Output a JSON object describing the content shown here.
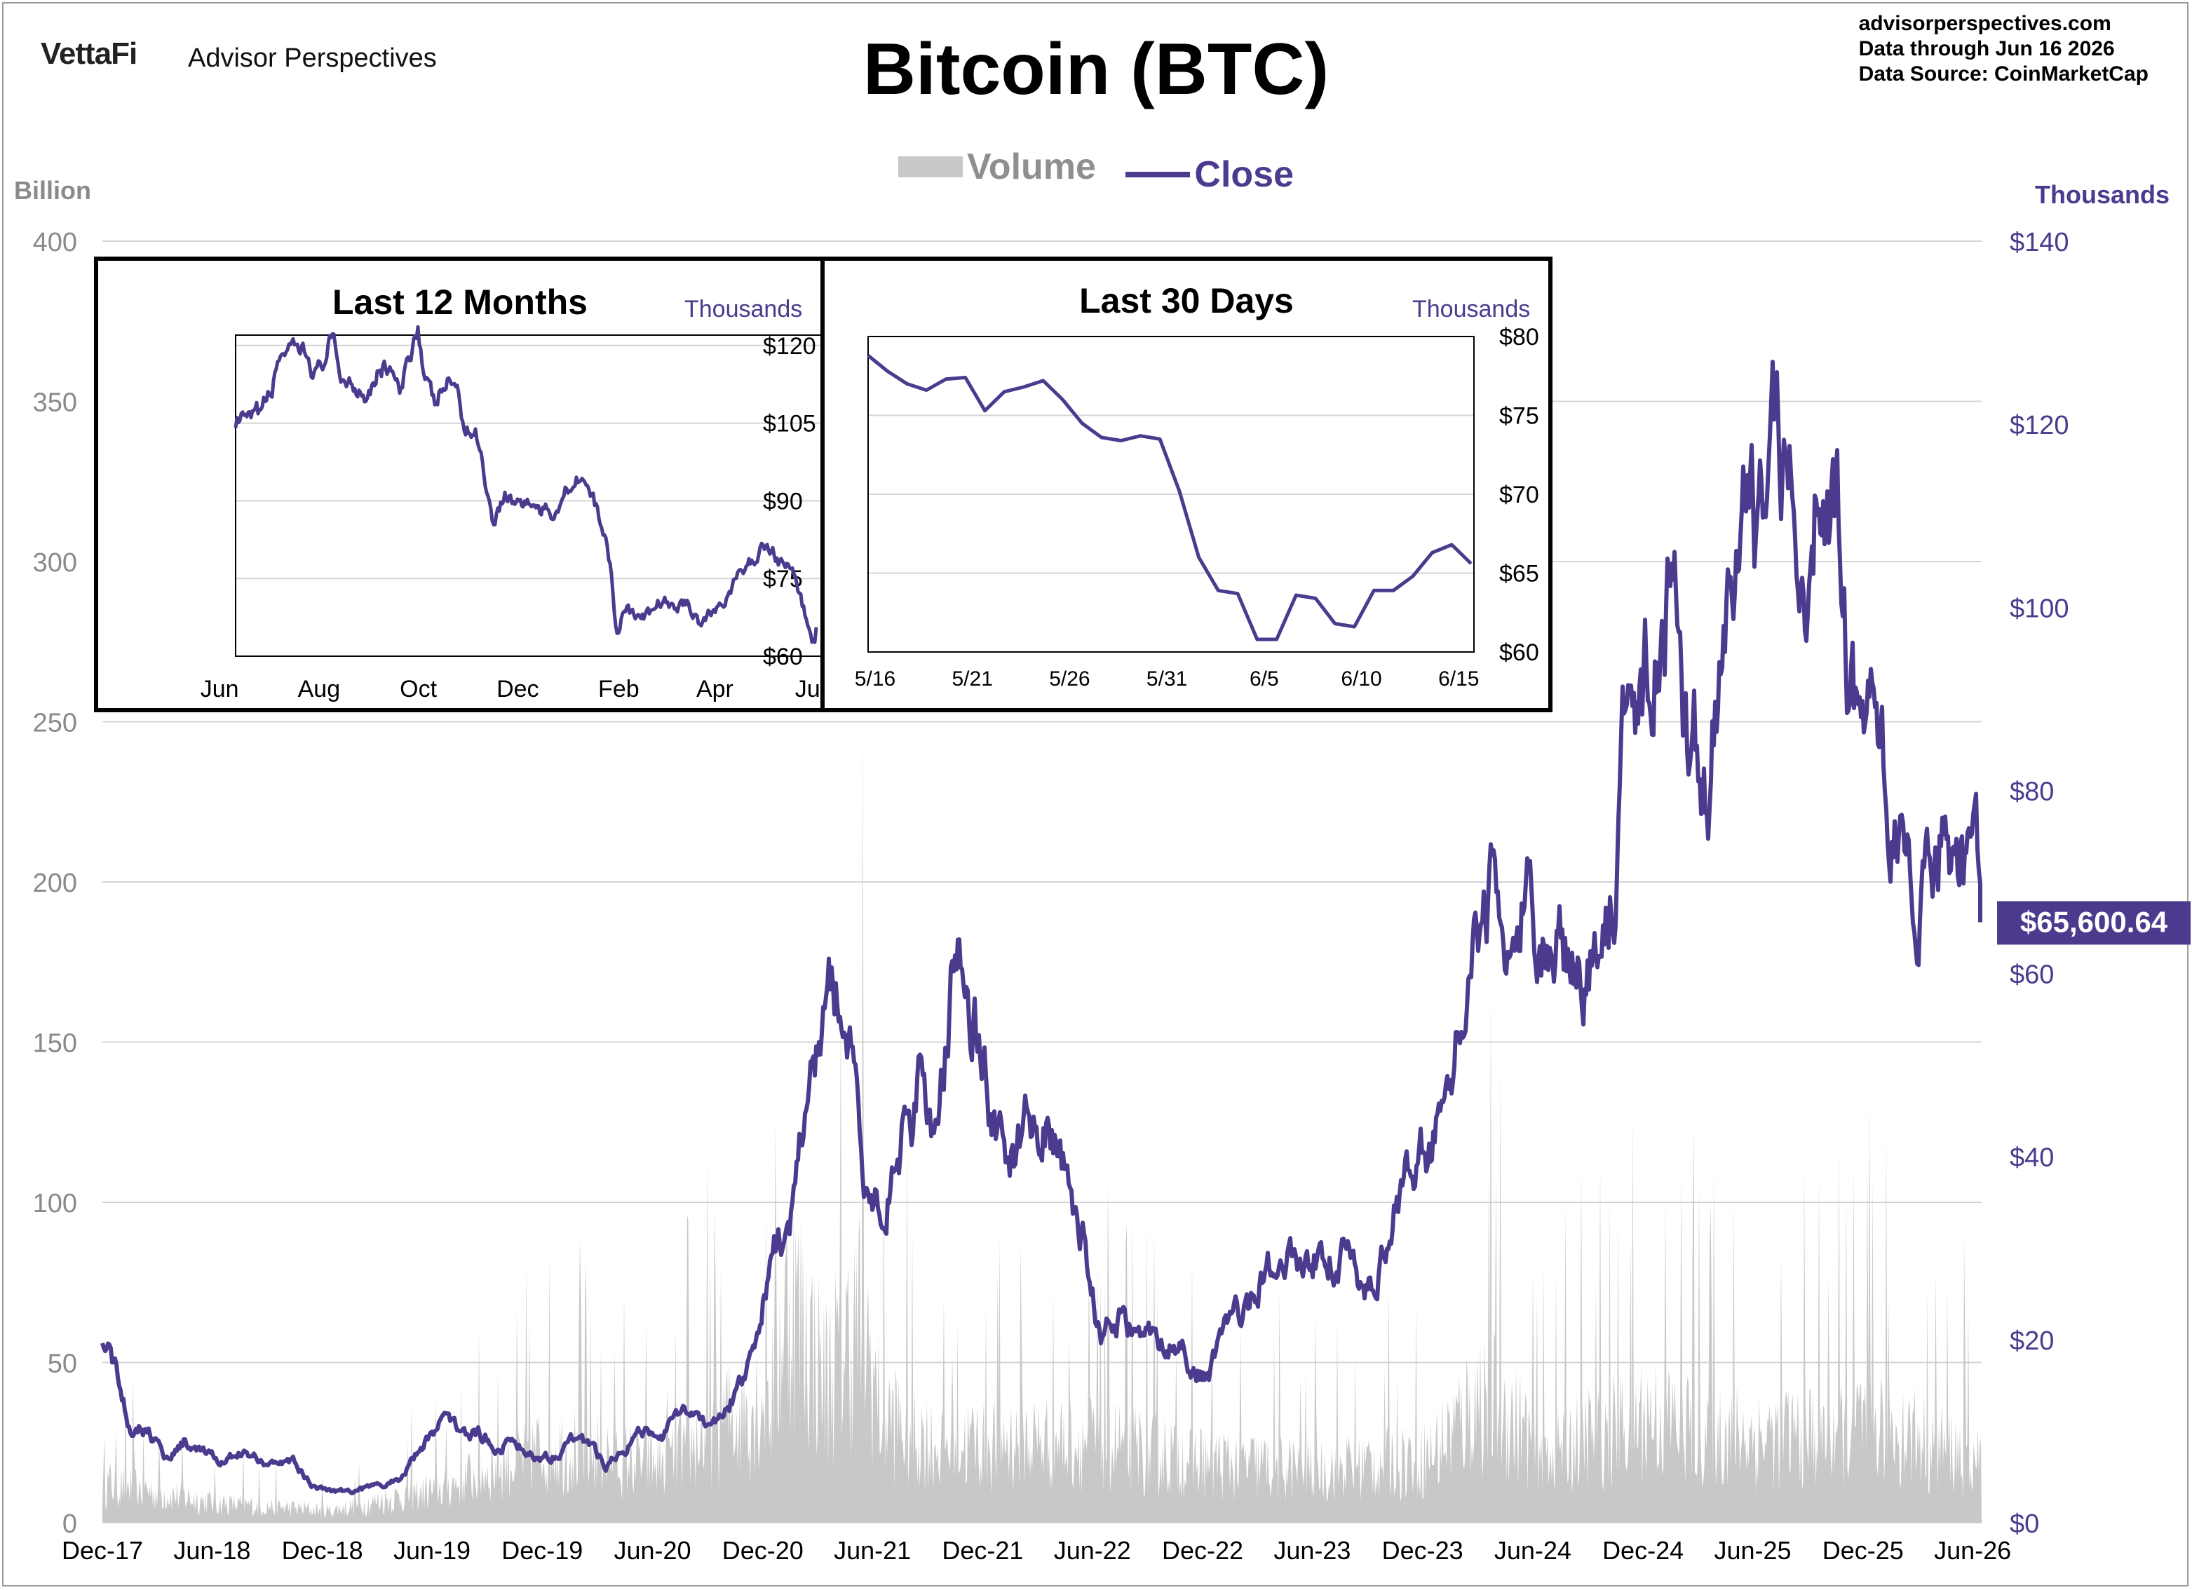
{
  "header": {
    "logo_brand": "VettaFi",
    "logo_product": "Advisor Perspectives",
    "title": "Bitcoin (BTC)",
    "site": "advisorperspectives.com",
    "data_through": "Data through  Jun 16 2026",
    "data_source": "Data Source:  CoinMarketCap"
  },
  "legend": {
    "volume_label": "Volume",
    "close_label": "Close"
  },
  "colors": {
    "close_line": "#4b3a8e",
    "volume_fill": "#c8c8c8",
    "grid": "#d4d4d4",
    "left_axis_text": "#8a8a8a"
  },
  "last_value_label": "$65,600.64",
  "chart_data": [
    {
      "type": "area+line",
      "title": "Bitcoin (BTC)",
      "left_axis": {
        "label": "Billion",
        "ticks": [
          "0",
          "50",
          "100",
          "150",
          "200",
          "250",
          "300",
          "350",
          "400"
        ],
        "range": [
          0,
          400
        ]
      },
      "right_axis": {
        "label": "Thousands",
        "ticks": [
          "$0",
          "$20",
          "$40",
          "$60",
          "$80",
          "$100",
          "$120",
          "$140"
        ],
        "range": [
          0,
          140
        ]
      },
      "x_ticks": [
        "Dec-17",
        "Jun-18",
        "Dec-18",
        "Jun-19",
        "Dec-19",
        "Jun-20",
        "Dec-20",
        "Jun-21",
        "Dec-21",
        "Jun-22",
        "Dec-22",
        "Jun-23",
        "Dec-23",
        "Jun-24",
        "Dec-24",
        "Jun-25",
        "Dec-25",
        "Jun-26"
      ],
      "grid": true,
      "series": [
        {
          "name": "Close",
          "axis": "right",
          "unit": "thousands USD",
          "x": [
            "2017-12",
            "2018-01",
            "2018-02",
            "2018-03",
            "2018-04",
            "2018-05",
            "2018-06",
            "2018-07",
            "2018-08",
            "2018-09",
            "2018-10",
            "2018-11",
            "2018-12",
            "2019-01",
            "2019-02",
            "2019-03",
            "2019-04",
            "2019-05",
            "2019-06",
            "2019-07",
            "2019-08",
            "2019-09",
            "2019-10",
            "2019-11",
            "2019-12",
            "2020-01",
            "2020-02",
            "2020-03",
            "2020-04",
            "2020-05",
            "2020-06",
            "2020-07",
            "2020-08",
            "2020-09",
            "2020-10",
            "2020-11",
            "2020-12",
            "2021-01",
            "2021-02",
            "2021-03",
            "2021-04",
            "2021-05",
            "2021-06",
            "2021-07",
            "2021-08",
            "2021-09",
            "2021-10",
            "2021-11",
            "2021-12",
            "2022-01",
            "2022-02",
            "2022-03",
            "2022-04",
            "2022-05",
            "2022-06",
            "2022-07",
            "2022-08",
            "2022-09",
            "2022-10",
            "2022-11",
            "2022-12",
            "2023-01",
            "2023-02",
            "2023-03",
            "2023-04",
            "2023-05",
            "2023-06",
            "2023-07",
            "2023-08",
            "2023-09",
            "2023-10",
            "2023-11",
            "2023-12",
            "2024-01",
            "2024-02",
            "2024-03",
            "2024-04",
            "2024-05",
            "2024-06",
            "2024-07",
            "2024-08",
            "2024-09",
            "2024-10",
            "2024-11",
            "2024-12",
            "2025-01",
            "2025-02",
            "2025-03",
            "2025-04",
            "2025-05",
            "2025-06",
            "2025-07",
            "2025-08",
            "2025-09",
            "2025-10",
            "2025-11",
            "2025-12",
            "2026-01",
            "2026-02",
            "2026-03",
            "2026-04",
            "2026-05",
            "2026-06"
          ],
          "values": [
            19.0,
            11.0,
            10.5,
            7.0,
            9.0,
            7.5,
            6.4,
            7.8,
            7.0,
            6.6,
            6.5,
            4.0,
            3.6,
            3.5,
            3.8,
            4.0,
            5.2,
            8.5,
            11.5,
            10.0,
            9.6,
            8.3,
            9.2,
            7.5,
            7.2,
            9.3,
            8.6,
            6.4,
            8.6,
            9.5,
            9.2,
            11.3,
            11.7,
            10.8,
            13.8,
            19.7,
            29.0,
            33.1,
            45.1,
            58.8,
            57.8,
            37.3,
            35.0,
            41.5,
            47.1,
            43.8,
            61.3,
            57.0,
            46.3,
            38.5,
            43.2,
            45.5,
            37.7,
            31.8,
            19.8,
            23.3,
            20.0,
            19.4,
            20.5,
            17.2,
            16.5,
            23.1,
            23.1,
            28.5,
            29.3,
            27.2,
            30.5,
            29.2,
            26.0,
            27.0,
            34.5,
            37.7,
            42.3,
            42.6,
            61.2,
            71.3,
            60.6,
            67.5,
            62.7,
            64.6,
            59.0,
            63.3,
            70.2,
            96.4,
            93.4,
            102.4,
            84.4,
            82.5,
            94.2,
            104.6,
            107.1,
            115.8,
            108.2,
            114.0,
            109.6,
            90.4,
            87.5,
            78.0,
            67.0,
            68.2,
            76.0,
            73.5,
            65.6
          ]
        },
        {
          "name": "Volume",
          "axis": "left",
          "unit": "billion USD",
          "x": [
            "2017-12",
            "2018-06",
            "2018-12",
            "2019-06",
            "2019-12",
            "2020-06",
            "2020-12",
            "2021-01",
            "2021-03",
            "2021-05",
            "2021-06",
            "2021-09",
            "2021-12",
            "2022-06",
            "2022-12",
            "2023-06",
            "2023-12",
            "2024-03",
            "2024-06",
            "2024-12",
            "2025-03",
            "2025-06",
            "2025-09",
            "2025-12",
            "2026-03",
            "2026-06"
          ],
          "values": [
            16,
            8,
            5,
            14,
            32,
            24,
            55,
            95,
            60,
            85,
            45,
            32,
            34,
            34,
            25,
            22,
            28,
            55,
            30,
            45,
            40,
            35,
            38,
            42,
            35,
            25
          ]
        }
      ]
    },
    {
      "type": "line",
      "title": "Last 12 Months",
      "right_axis": {
        "label": "Thousands",
        "ticks": [
          "$60",
          "$75",
          "$90",
          "$105",
          "$120"
        ],
        "range": [
          60,
          122
        ]
      },
      "x_ticks": [
        "Jun",
        "Aug",
        "Oct",
        "Dec",
        "Feb",
        "Apr",
        "Jun"
      ],
      "grid": true,
      "series": [
        {
          "name": "Close",
          "x": [
            "2025-06-16",
            "2025-06-25",
            "2025-07-01",
            "2025-07-08",
            "2025-07-14",
            "2025-07-20",
            "2025-07-28",
            "2025-08-05",
            "2025-08-14",
            "2025-08-20",
            "2025-08-28",
            "2025-09-05",
            "2025-09-12",
            "2025-09-20",
            "2025-09-25",
            "2025-10-01",
            "2025-10-06",
            "2025-10-10",
            "2025-10-16",
            "2025-10-22",
            "2025-10-28",
            "2025-11-04",
            "2025-11-12",
            "2025-11-18",
            "2025-11-21",
            "2025-11-28",
            "2025-12-05",
            "2025-12-12",
            "2025-12-20",
            "2025-12-28",
            "2026-01-05",
            "2026-01-14",
            "2026-01-21",
            "2026-01-28",
            "2026-02-01",
            "2026-02-05",
            "2026-02-10",
            "2026-02-18",
            "2026-02-25",
            "2026-03-05",
            "2026-03-12",
            "2026-03-20",
            "2026-03-28",
            "2026-04-05",
            "2026-04-12",
            "2026-04-20",
            "2026-04-28",
            "2026-05-04",
            "2026-05-10",
            "2026-05-16",
            "2026-05-25",
            "2026-06-05",
            "2026-06-10",
            "2026-06-16"
          ],
          "values": [
            105.5,
            105.0,
            107.2,
            111.0,
            119.5,
            118.0,
            118.5,
            114.0,
            121.0,
            114.0,
            112.5,
            111.0,
            115.5,
            115.8,
            109.5,
            118.5,
            124.5,
            113.0,
            108.5,
            112.0,
            113.5,
            104.0,
            102.5,
            91.0,
            86.0,
            91.5,
            89.5,
            90.0,
            88.0,
            87.5,
            92.5,
            95.5,
            90.0,
            84.5,
            77.0,
            64.0,
            70.0,
            67.0,
            68.0,
            71.0,
            69.0,
            70.5,
            66.5,
            68.5,
            71.0,
            75.0,
            78.0,
            80.5,
            81.0,
            78.5,
            76.0,
            62.5,
            63.0,
            65.6
          ]
        }
      ]
    },
    {
      "type": "line",
      "title": "Last 30 Days",
      "right_axis": {
        "label": "Thousands",
        "ticks": [
          "$60",
          "$65",
          "$70",
          "$75",
          "$80"
        ],
        "range": [
          60,
          80
        ]
      },
      "x_ticks": [
        "5/16",
        "5/21",
        "5/26",
        "5/31",
        "6/5",
        "6/10",
        "6/15"
      ],
      "grid": true,
      "series": [
        {
          "name": "Close",
          "x": [
            "5/16",
            "5/17",
            "5/18",
            "5/19",
            "5/20",
            "5/21",
            "5/22",
            "5/23",
            "5/24",
            "5/25",
            "5/26",
            "5/27",
            "5/28",
            "5/29",
            "5/30",
            "5/31",
            "6/1",
            "6/2",
            "6/3",
            "6/4",
            "6/5",
            "6/6",
            "6/7",
            "6/8",
            "6/9",
            "6/10",
            "6/11",
            "6/12",
            "6/13",
            "6/14",
            "6/15",
            "6/16"
          ],
          "values": [
            78.8,
            77.8,
            77.0,
            76.6,
            77.3,
            77.4,
            75.3,
            76.5,
            76.8,
            77.2,
            76.0,
            74.5,
            73.6,
            73.4,
            73.7,
            73.5,
            70.2,
            66.0,
            63.9,
            63.7,
            60.8,
            60.8,
            63.6,
            63.4,
            61.8,
            61.6,
            63.9,
            63.9,
            64.8,
            66.3,
            66.8,
            65.6
          ]
        }
      ]
    }
  ]
}
